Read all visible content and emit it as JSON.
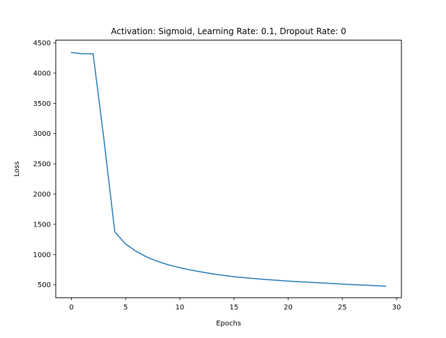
{
  "chart_data": {
    "type": "line",
    "title": "Activation: Sigmoid, Learning Rate: 0.1, Dropout Rate: 0",
    "xlabel": "Epochs",
    "ylabel": "Loss",
    "xlim": [
      -1.45,
      30.45
    ],
    "ylim": [
      287,
      4545
    ],
    "xticks": [
      0,
      5,
      10,
      15,
      20,
      25,
      30
    ],
    "yticks": [
      500,
      1000,
      1500,
      2000,
      2500,
      3000,
      3500,
      4000,
      4500
    ],
    "xtick_labels": [
      "0",
      "5",
      "10",
      "15",
      "20",
      "25",
      "30"
    ],
    "ytick_labels": [
      "500",
      "1000",
      "1500",
      "2000",
      "2500",
      "3000",
      "3500",
      "4000",
      "4500"
    ],
    "grid": false,
    "line_color": "#1f77b4",
    "series": [
      {
        "x": [
          0,
          1,
          2,
          3,
          4,
          5,
          6,
          7,
          8,
          9,
          10,
          11,
          12,
          13,
          14,
          15,
          16,
          17,
          18,
          19,
          20,
          21,
          22,
          23,
          24,
          25,
          26,
          27,
          28,
          29
        ],
        "values": [
          4340,
          4320,
          4318,
          2900,
          1375,
          1175,
          1050,
          955,
          885,
          828,
          783,
          745,
          713,
          683,
          658,
          633,
          618,
          602,
          587,
          574,
          562,
          551,
          542,
          532,
          522,
          512,
          503,
          495,
          486,
          477
        ]
      }
    ]
  }
}
